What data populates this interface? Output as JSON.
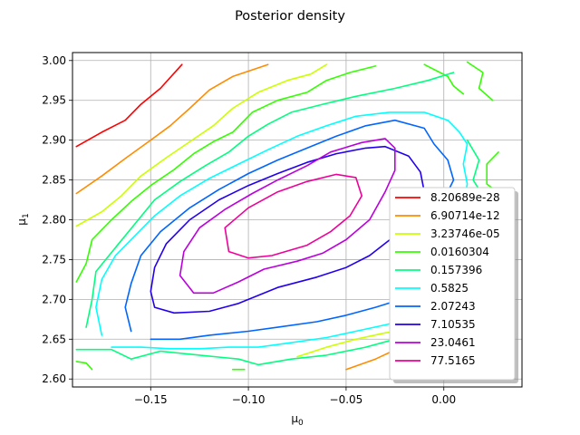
{
  "chart_data": {
    "type": "line",
    "subtype": "contour",
    "title": "Posterior density",
    "xlabel": "μ",
    "xlabel_sub": "0",
    "ylabel": "μ",
    "ylabel_sub": "1",
    "xlim": [
      -0.19,
      0.04
    ],
    "ylim": [
      2.59,
      3.01
    ],
    "x_ticks": [
      "−0.15",
      "−0.10",
      "−0.05",
      "0.00"
    ],
    "x_tick_values": [
      -0.15,
      -0.1,
      -0.05,
      0.0
    ],
    "y_ticks": [
      "2.60",
      "2.65",
      "2.70",
      "2.75",
      "2.80",
      "2.85",
      "2.90",
      "2.95",
      "3.00"
    ],
    "y_tick_values": [
      2.6,
      2.65,
      2.7,
      2.75,
      2.8,
      2.85,
      2.9,
      2.95,
      3.0
    ],
    "grid": true,
    "legend_placement": "lower-right",
    "series": [
      {
        "name": "8.20689e-28",
        "color": "#ff0000",
        "segments": [
          [
            [
              -0.188,
              2.892
            ],
            [
              -0.175,
              2.91
            ],
            [
              -0.163,
              2.925
            ],
            [
              -0.155,
              2.945
            ],
            [
              -0.145,
              2.965
            ],
            [
              -0.134,
              2.995
            ]
          ]
        ]
      },
      {
        "name": "6.90714e-12",
        "color": "#ff8c00",
        "segments": [
          [
            [
              -0.188,
              2.833
            ],
            [
              -0.175,
              2.855
            ],
            [
              -0.163,
              2.877
            ],
            [
              -0.15,
              2.9
            ],
            [
              -0.14,
              2.918
            ],
            [
              -0.13,
              2.94
            ],
            [
              -0.12,
              2.963
            ],
            [
              -0.108,
              2.98
            ],
            [
              -0.09,
              2.995
            ]
          ],
          [
            [
              -0.05,
              2.612
            ],
            [
              -0.035,
              2.625
            ],
            [
              -0.022,
              2.64
            ],
            [
              -0.01,
              2.65
            ]
          ]
        ]
      },
      {
        "name": "3.23746e-05",
        "color": "#ccff00",
        "segments": [
          [
            [
              -0.188,
              2.792
            ],
            [
              -0.175,
              2.81
            ],
            [
              -0.165,
              2.83
            ],
            [
              -0.155,
              2.855
            ],
            [
              -0.142,
              2.878
            ],
            [
              -0.13,
              2.898
            ],
            [
              -0.118,
              2.918
            ],
            [
              -0.108,
              2.94
            ],
            [
              -0.095,
              2.96
            ],
            [
              -0.08,
              2.975
            ],
            [
              -0.068,
              2.983
            ],
            [
              -0.06,
              2.995
            ]
          ],
          [
            [
              -0.075,
              2.628
            ],
            [
              -0.06,
              2.64
            ],
            [
              -0.045,
              2.65
            ],
            [
              -0.03,
              2.658
            ],
            [
              -0.018,
              2.662
            ],
            [
              -0.008,
              2.665
            ]
          ]
        ]
      },
      {
        "name": "0.0160304",
        "color": "#33ff00",
        "segments": [
          [
            [
              -0.188,
              2.722
            ],
            [
              -0.183,
              2.745
            ],
            [
              -0.18,
              2.775
            ],
            [
              -0.17,
              2.8
            ],
            [
              -0.16,
              2.823
            ],
            [
              -0.15,
              2.843
            ],
            [
              -0.138,
              2.863
            ],
            [
              -0.128,
              2.883
            ],
            [
              -0.118,
              2.898
            ],
            [
              -0.108,
              2.91
            ],
            [
              -0.098,
              2.935
            ],
            [
              -0.085,
              2.95
            ],
            [
              -0.07,
              2.96
            ],
            [
              -0.06,
              2.975
            ],
            [
              -0.048,
              2.985
            ],
            [
              -0.035,
              2.993
            ]
          ],
          [
            [
              -0.01,
              2.995
            ],
            [
              0.002,
              2.98
            ],
            [
              0.005,
              2.968
            ],
            [
              0.01,
              2.958
            ]
          ],
          [
            [
              0.012,
              2.998
            ],
            [
              0.02,
              2.985
            ],
            [
              0.018,
              2.965
            ],
            [
              0.025,
              2.95
            ]
          ],
          [
            [
              0.028,
              2.885
            ],
            [
              0.022,
              2.87
            ],
            [
              0.022,
              2.845
            ],
            [
              0.03,
              2.83
            ]
          ],
          [
            [
              -0.188,
              2.622
            ],
            [
              -0.183,
              2.62
            ],
            [
              -0.18,
              2.612
            ]
          ],
          [
            [
              -0.108,
              2.612
            ],
            [
              -0.102,
              2.612
            ]
          ]
        ]
      },
      {
        "name": "0.157396",
        "color": "#00ff7f",
        "segments": [
          [
            [
              -0.183,
              2.665
            ],
            [
              -0.18,
              2.7
            ],
            [
              -0.178,
              2.735
            ],
            [
              -0.168,
              2.765
            ],
            [
              -0.158,
              2.795
            ],
            [
              -0.148,
              2.825
            ],
            [
              -0.135,
              2.848
            ],
            [
              -0.122,
              2.868
            ],
            [
              -0.11,
              2.885
            ],
            [
              -0.1,
              2.905
            ],
            [
              -0.09,
              2.92
            ],
            [
              -0.078,
              2.935
            ],
            [
              -0.062,
              2.945
            ],
            [
              -0.045,
              2.955
            ],
            [
              -0.025,
              2.965
            ],
            [
              -0.008,
              2.975
            ],
            [
              0.005,
              2.985
            ]
          ],
          [
            [
              -0.188,
              2.637
            ],
            [
              -0.17,
              2.637
            ],
            [
              -0.16,
              2.625
            ],
            [
              -0.145,
              2.635
            ],
            [
              -0.125,
              2.63
            ],
            [
              -0.105,
              2.625
            ],
            [
              -0.095,
              2.618
            ],
            [
              -0.078,
              2.625
            ],
            [
              -0.06,
              2.63
            ],
            [
              -0.04,
              2.64
            ],
            [
              -0.025,
              2.65
            ]
          ],
          [
            [
              0.012,
              2.9
            ],
            [
              0.018,
              2.875
            ],
            [
              0.015,
              2.85
            ],
            [
              0.02,
              2.83
            ]
          ]
        ]
      },
      {
        "name": "0.5825",
        "color": "#00ffff",
        "segments": [
          [
            [
              -0.175,
              2.655
            ],
            [
              -0.178,
              2.69
            ],
            [
              -0.175,
              2.725
            ],
            [
              -0.168,
              2.755
            ],
            [
              -0.158,
              2.78
            ],
            [
              -0.148,
              2.805
            ],
            [
              -0.135,
              2.83
            ],
            [
              -0.12,
              2.852
            ],
            [
              -0.105,
              2.87
            ],
            [
              -0.09,
              2.888
            ],
            [
              -0.075,
              2.905
            ],
            [
              -0.06,
              2.918
            ],
            [
              -0.045,
              2.93
            ],
            [
              -0.028,
              2.935
            ],
            [
              -0.01,
              2.935
            ],
            [
              0.002,
              2.925
            ],
            [
              0.008,
              2.91
            ],
            [
              0.012,
              2.895
            ],
            [
              0.01,
              2.87
            ],
            [
              0.012,
              2.845
            ],
            [
              0.01,
              2.82
            ]
          ],
          [
            [
              -0.17,
              2.64
            ],
            [
              -0.155,
              2.64
            ],
            [
              -0.14,
              2.638
            ],
            [
              -0.125,
              2.638
            ],
            [
              -0.11,
              2.64
            ],
            [
              -0.095,
              2.64
            ],
            [
              -0.08,
              2.645
            ],
            [
              -0.06,
              2.652
            ],
            [
              -0.045,
              2.66
            ],
            [
              -0.03,
              2.668
            ],
            [
              -0.018,
              2.675
            ]
          ]
        ]
      },
      {
        "name": "2.07243",
        "color": "#0066ff",
        "segments": [
          [
            [
              -0.16,
              2.66
            ],
            [
              -0.163,
              2.69
            ],
            [
              -0.16,
              2.72
            ],
            [
              -0.155,
              2.755
            ],
            [
              -0.145,
              2.785
            ],
            [
              -0.13,
              2.815
            ],
            [
              -0.115,
              2.838
            ],
            [
              -0.1,
              2.858
            ],
            [
              -0.085,
              2.875
            ],
            [
              -0.07,
              2.89
            ],
            [
              -0.055,
              2.905
            ],
            [
              -0.04,
              2.918
            ],
            [
              -0.025,
              2.925
            ],
            [
              -0.01,
              2.915
            ],
            [
              -0.005,
              2.895
            ],
            [
              0.002,
              2.875
            ],
            [
              0.005,
              2.85
            ],
            [
              0.0,
              2.825
            ],
            [
              -0.005,
              2.8
            ]
          ],
          [
            [
              -0.15,
              2.65
            ],
            [
              -0.135,
              2.65
            ],
            [
              -0.12,
              2.655
            ],
            [
              -0.1,
              2.66
            ],
            [
              -0.085,
              2.665
            ],
            [
              -0.065,
              2.672
            ],
            [
              -0.05,
              2.68
            ],
            [
              -0.035,
              2.69
            ],
            [
              -0.022,
              2.7
            ]
          ]
        ]
      },
      {
        "name": "7.10535",
        "color": "#2200ee",
        "segments": [
          [
            [
              -0.04,
              2.89
            ],
            [
              -0.03,
              2.892
            ],
            [
              -0.018,
              2.88
            ],
            [
              -0.012,
              2.86
            ],
            [
              -0.01,
              2.835
            ],
            [
              -0.015,
              2.808
            ],
            [
              -0.025,
              2.78
            ],
            [
              -0.038,
              2.755
            ],
            [
              -0.05,
              2.74
            ],
            [
              -0.065,
              2.728
            ],
            [
              -0.085,
              2.715
            ],
            [
              -0.105,
              2.695
            ],
            [
              -0.12,
              2.685
            ],
            [
              -0.138,
              2.683
            ],
            [
              -0.148,
              2.69
            ],
            [
              -0.15,
              2.71
            ],
            [
              -0.148,
              2.74
            ],
            [
              -0.142,
              2.77
            ],
            [
              -0.13,
              2.8
            ],
            [
              -0.115,
              2.825
            ],
            [
              -0.1,
              2.843
            ],
            [
              -0.085,
              2.858
            ],
            [
              -0.07,
              2.872
            ],
            [
              -0.055,
              2.883
            ],
            [
              -0.04,
              2.89
            ]
          ]
        ]
      },
      {
        "name": "23.0461",
        "color": "#bb00dd",
        "segments": [
          [
            [
              -0.135,
              2.73
            ],
            [
              -0.133,
              2.76
            ],
            [
              -0.125,
              2.79
            ],
            [
              -0.112,
              2.813
            ],
            [
              -0.098,
              2.833
            ],
            [
              -0.085,
              2.85
            ],
            [
              -0.07,
              2.868
            ],
            [
              -0.058,
              2.885
            ],
            [
              -0.042,
              2.897
            ],
            [
              -0.03,
              2.902
            ],
            [
              -0.025,
              2.89
            ],
            [
              -0.025,
              2.862
            ],
            [
              -0.03,
              2.835
            ],
            [
              -0.038,
              2.8
            ],
            [
              -0.05,
              2.775
            ],
            [
              -0.062,
              2.758
            ],
            [
              -0.075,
              2.748
            ],
            [
              -0.092,
              2.738
            ],
            [
              -0.105,
              2.722
            ],
            [
              -0.118,
              2.708
            ],
            [
              -0.128,
              2.708
            ],
            [
              -0.135,
              2.73
            ]
          ]
        ]
      },
      {
        "name": "77.5165",
        "color": "#ee0099",
        "segments": [
          [
            [
              -0.11,
              2.76
            ],
            [
              -0.112,
              2.79
            ],
            [
              -0.1,
              2.815
            ],
            [
              -0.085,
              2.835
            ],
            [
              -0.07,
              2.848
            ],
            [
              -0.055,
              2.857
            ],
            [
              -0.045,
              2.853
            ],
            [
              -0.042,
              2.83
            ],
            [
              -0.048,
              2.805
            ],
            [
              -0.058,
              2.785
            ],
            [
              -0.07,
              2.768
            ],
            [
              -0.088,
              2.755
            ],
            [
              -0.1,
              2.752
            ],
            [
              -0.11,
              2.76
            ]
          ]
        ]
      }
    ]
  }
}
